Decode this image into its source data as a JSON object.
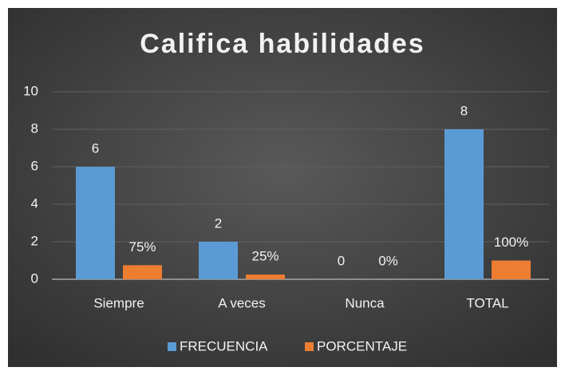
{
  "chart_data": {
    "type": "bar",
    "title": "Califica habilidades",
    "categories": [
      "Siempre",
      "A veces",
      "Nunca",
      "TOTAL"
    ],
    "series": [
      {
        "name": "FRECUENCIA",
        "color": "#5b9bd5",
        "values": [
          6,
          2,
          0,
          8
        ]
      },
      {
        "name": "PORCENTAJE",
        "color": "#ed7d31",
        "values": [
          0.75,
          0.25,
          0,
          1
        ],
        "value_labels": [
          "75%",
          "25%",
          "0%",
          "100%"
        ]
      }
    ],
    "ylim": [
      0,
      10
    ],
    "yticks": [
      0,
      2,
      4,
      6,
      8,
      10
    ],
    "grid": true,
    "legend": "bottom"
  }
}
